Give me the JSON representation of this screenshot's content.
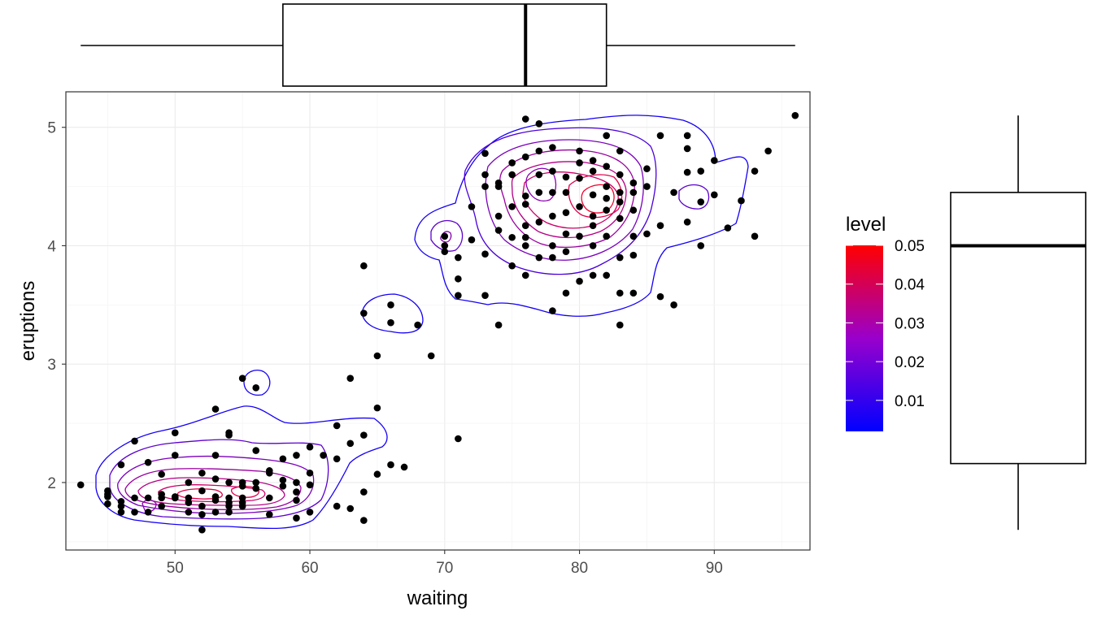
{
  "chart_data": {
    "type": "scatter",
    "xlabel": "waiting",
    "ylabel": "eruptions",
    "xlim": [
      41.9,
      97.1
    ],
    "ylim": [
      1.43,
      5.3
    ],
    "x_ticks": [
      50,
      60,
      70,
      80,
      90
    ],
    "y_ticks": [
      2,
      3,
      4,
      5
    ],
    "grid": true,
    "point_color": "#000000",
    "points": [
      [
        43,
        1.98
      ],
      [
        45,
        1.82
      ],
      [
        45,
        1.88
      ],
      [
        45,
        1.9
      ],
      [
        45,
        1.93
      ],
      [
        46,
        1.75
      ],
      [
        46,
        1.8
      ],
      [
        46,
        1.84
      ],
      [
        46,
        2.15
      ],
      [
        47,
        1.75
      ],
      [
        47,
        1.87
      ],
      [
        47,
        2.35
      ],
      [
        48,
        1.75
      ],
      [
        48,
        1.87
      ],
      [
        48,
        2.17
      ],
      [
        49,
        1.8
      ],
      [
        49,
        1.87
      ],
      [
        49,
        1.9
      ],
      [
        49,
        2.07
      ],
      [
        50,
        1.87
      ],
      [
        50,
        1.87
      ],
      [
        50,
        1.88
      ],
      [
        50,
        2.23
      ],
      [
        50,
        2.42
      ],
      [
        51,
        1.75
      ],
      [
        51,
        1.83
      ],
      [
        51,
        1.87
      ],
      [
        51,
        2.0
      ],
      [
        52,
        1.6
      ],
      [
        52,
        1.73
      ],
      [
        52,
        1.8
      ],
      [
        52,
        1.93
      ],
      [
        52,
        2.08
      ],
      [
        53,
        1.75
      ],
      [
        53,
        1.85
      ],
      [
        53,
        1.88
      ],
      [
        53,
        2.03
      ],
      [
        53,
        2.23
      ],
      [
        53,
        2.62
      ],
      [
        54,
        1.75
      ],
      [
        54,
        1.8
      ],
      [
        54,
        1.83
      ],
      [
        54,
        1.87
      ],
      [
        54,
        2.0
      ],
      [
        54,
        2.4
      ],
      [
        54,
        2.42
      ],
      [
        55,
        1.8
      ],
      [
        55,
        1.83
      ],
      [
        55,
        1.87
      ],
      [
        55,
        1.97
      ],
      [
        55,
        2.0
      ],
      [
        55,
        2.88
      ],
      [
        56,
        1.95
      ],
      [
        56,
        2.0
      ],
      [
        56,
        2.27
      ],
      [
        56,
        2.8
      ],
      [
        57,
        1.73
      ],
      [
        57,
        1.87
      ],
      [
        57,
        2.08
      ],
      [
        57,
        2.1
      ],
      [
        58,
        1.97
      ],
      [
        58,
        2.02
      ],
      [
        58,
        2.2
      ],
      [
        59,
        1.7
      ],
      [
        59,
        1.85
      ],
      [
        59,
        1.92
      ],
      [
        59,
        2.0
      ],
      [
        59,
        2.23
      ],
      [
        60,
        1.75
      ],
      [
        60,
        1.98
      ],
      [
        60,
        2.3
      ],
      [
        61,
        2.23
      ],
      [
        62,
        1.8
      ],
      [
        62,
        2.2
      ],
      [
        63,
        2.33
      ],
      [
        64,
        2.4
      ],
      [
        64,
        1.68
      ],
      [
        64,
        1.92
      ],
      [
        65,
        2.07
      ],
      [
        65,
        2.63
      ],
      [
        66,
        2.15
      ],
      [
        67,
        2.13
      ],
      [
        63,
        2.88
      ],
      [
        63,
        1.78
      ],
      [
        62,
        2.48
      ],
      [
        60,
        2.08
      ],
      [
        65,
        3.07
      ],
      [
        71,
        2.37
      ],
      [
        64,
        3.83
      ],
      [
        64,
        3.43
      ],
      [
        66,
        3.35
      ],
      [
        66,
        3.5
      ],
      [
        68,
        3.33
      ],
      [
        69,
        3.07
      ],
      [
        70,
        3.95
      ],
      [
        70,
        4.08
      ],
      [
        70,
        4.0
      ],
      [
        71,
        3.58
      ],
      [
        71,
        3.72
      ],
      [
        71,
        3.9
      ],
      [
        72,
        4.33
      ],
      [
        72,
        4.05
      ],
      [
        73,
        3.58
      ],
      [
        73,
        3.93
      ],
      [
        73,
        4.5
      ],
      [
        73,
        4.6
      ],
      [
        73,
        4.78
      ],
      [
        74,
        3.33
      ],
      [
        74,
        4.13
      ],
      [
        74,
        4.25
      ],
      [
        74,
        4.5
      ],
      [
        74,
        4.53
      ],
      [
        75,
        3.83
      ],
      [
        75,
        4.07
      ],
      [
        75,
        4.33
      ],
      [
        75,
        4.6
      ],
      [
        75,
        4.7
      ],
      [
        76,
        3.75
      ],
      [
        76,
        4.0
      ],
      [
        76,
        4.07
      ],
      [
        76,
        4.35
      ],
      [
        76,
        4.42
      ],
      [
        76,
        4.75
      ],
      [
        76,
        5.07
      ],
      [
        77,
        3.9
      ],
      [
        77,
        4.2
      ],
      [
        77,
        4.45
      ],
      [
        77,
        4.6
      ],
      [
        77,
        4.8
      ],
      [
        78,
        3.45
      ],
      [
        78,
        3.9
      ],
      [
        78,
        4.0
      ],
      [
        78,
        4.25
      ],
      [
        78,
        4.45
      ],
      [
        78,
        4.63
      ],
      [
        78,
        4.83
      ],
      [
        79,
        3.6
      ],
      [
        79,
        3.95
      ],
      [
        79,
        4.1
      ],
      [
        79,
        4.28
      ],
      [
        79,
        4.45
      ],
      [
        79,
        4.58
      ],
      [
        80,
        3.7
      ],
      [
        80,
        4.08
      ],
      [
        80,
        4.33
      ],
      [
        80,
        4.57
      ],
      [
        80,
        4.8
      ],
      [
        81,
        3.75
      ],
      [
        81,
        4.0
      ],
      [
        81,
        4.25
      ],
      [
        81,
        4.43
      ],
      [
        81,
        4.63
      ],
      [
        81,
        4.72
      ],
      [
        82,
        3.75
      ],
      [
        82,
        4.08
      ],
      [
        82,
        4.3
      ],
      [
        82,
        4.4
      ],
      [
        82,
        4.5
      ],
      [
        82,
        4.67
      ],
      [
        82,
        4.93
      ],
      [
        83,
        3.6
      ],
      [
        83,
        3.9
      ],
      [
        83,
        4.23
      ],
      [
        83,
        4.37
      ],
      [
        83,
        4.45
      ],
      [
        83,
        4.6
      ],
      [
        83,
        4.8
      ],
      [
        84,
        3.6
      ],
      [
        84,
        3.92
      ],
      [
        84,
        4.08
      ],
      [
        84,
        4.3
      ],
      [
        84,
        4.45
      ],
      [
        84,
        4.53
      ],
      [
        85,
        4.1
      ],
      [
        85,
        4.5
      ],
      [
        85,
        4.65
      ],
      [
        86,
        3.57
      ],
      [
        86,
        4.17
      ],
      [
        86,
        4.93
      ],
      [
        87,
        3.5
      ],
      [
        87,
        4.45
      ],
      [
        88,
        4.2
      ],
      [
        88,
        4.62
      ],
      [
        88,
        4.82
      ],
      [
        88,
        4.93
      ],
      [
        89,
        4.0
      ],
      [
        89,
        4.37
      ],
      [
        89,
        4.63
      ],
      [
        90,
        4.43
      ],
      [
        90,
        4.72
      ],
      [
        91,
        4.15
      ],
      [
        92,
        4.38
      ],
      [
        93,
        4.08
      ],
      [
        93,
        4.63
      ],
      [
        94,
        4.8
      ],
      [
        96,
        5.1
      ],
      [
        83,
        3.33
      ],
      [
        77,
        5.03
      ],
      [
        76,
        4.17
      ],
      [
        80,
        4.7
      ],
      [
        81,
        4.17
      ]
    ],
    "legend": {
      "title": "level",
      "type": "colorbar",
      "position": "right",
      "labels": [
        "0.05",
        "0.04",
        "0.03",
        "0.02",
        "0.01"
      ],
      "values": [
        0.05,
        0.04,
        0.03,
        0.02,
        0.01
      ],
      "range": [
        0.002,
        0.05
      ],
      "color_low": "#0000ff",
      "color_high": "#ff0000"
    },
    "marginal_boxplot_x": {
      "variable": "waiting",
      "min": 43,
      "q1": 58,
      "median": 76,
      "q3": 82,
      "max": 96
    },
    "marginal_boxplot_y": {
      "variable": "eruptions",
      "min": 1.6,
      "q1": 2.16,
      "median": 4.0,
      "q3": 4.45,
      "max": 5.1
    }
  }
}
